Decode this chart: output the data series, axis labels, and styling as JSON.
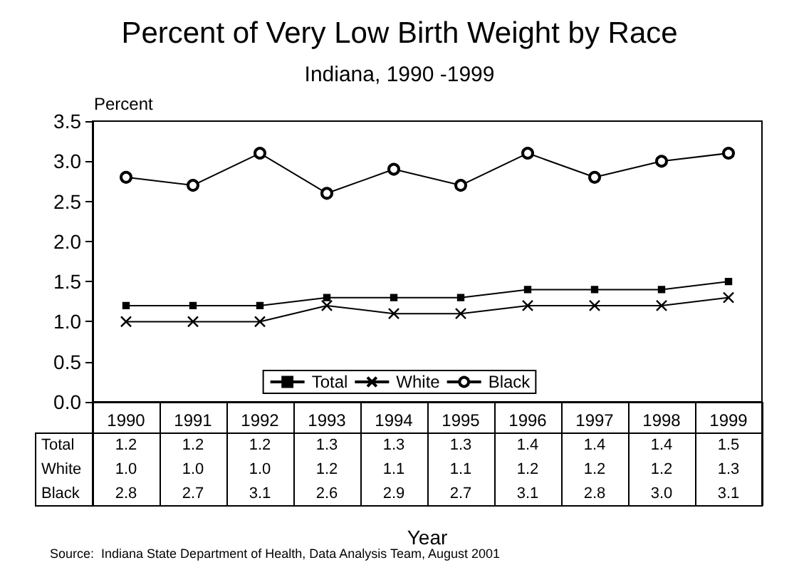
{
  "chart_data": {
    "type": "line",
    "title": "Percent of Very Low Birth Weight by Race",
    "subtitle": "Indiana, 1990 -1999",
    "xlabel": "Year",
    "ylabel": "Percent",
    "categories": [
      "1990",
      "1991",
      "1992",
      "1993",
      "1994",
      "1995",
      "1996",
      "1997",
      "1998",
      "1999"
    ],
    "series": [
      {
        "name": "Total",
        "color": "#000000",
        "marker": "square",
        "values": [
          1.2,
          1.2,
          1.2,
          1.3,
          1.3,
          1.3,
          1.4,
          1.4,
          1.4,
          1.5
        ],
        "value_labels": [
          "1.2",
          "1.2",
          "1.2",
          "1.3",
          "1.3",
          "1.3",
          "1.4",
          "1.4",
          "1.4",
          "1.5"
        ]
      },
      {
        "name": "White",
        "color": "#000000",
        "marker": "cross",
        "values": [
          1.0,
          1.0,
          1.0,
          1.2,
          1.1,
          1.1,
          1.2,
          1.2,
          1.2,
          1.3
        ],
        "value_labels": [
          "1.0",
          "1.0",
          "1.0",
          "1.2",
          "1.1",
          "1.1",
          "1.2",
          "1.2",
          "1.2",
          "1.3"
        ]
      },
      {
        "name": "Black",
        "color": "#000000",
        "marker": "circle",
        "values": [
          2.8,
          2.7,
          3.1,
          2.6,
          2.9,
          2.7,
          3.1,
          2.8,
          3.0,
          3.1
        ],
        "value_labels": [
          "2.8",
          "2.7",
          "3.1",
          "2.6",
          "2.9",
          "2.7",
          "3.1",
          "2.8",
          "3.0",
          "3.1"
        ]
      }
    ],
    "ylim": [
      0,
      3.5
    ],
    "yticks": [
      {
        "value": 0,
        "label": "0.0"
      },
      0.5,
      {
        "value": 1,
        "label": "1.0"
      },
      1.5,
      {
        "value": 2,
        "label": "2.0"
      },
      2.5,
      {
        "value": 3,
        "label": "3.0"
      },
      3.5
    ],
    "legend": "bottom",
    "annotations": [
      "Source:  Indiana State Department of Health, Data Analysis Team, August 2001"
    ]
  }
}
